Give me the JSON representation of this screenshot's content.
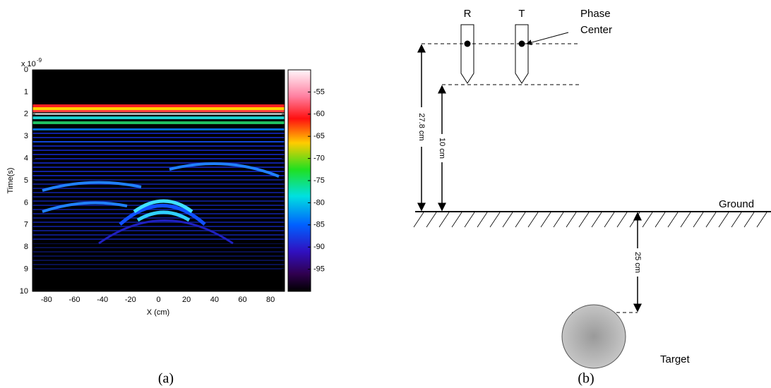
{
  "chart_data": {
    "type": "heatmap",
    "xlabel": "X (cm)",
    "ylabel": "Time(s)",
    "exponent_base": "x 10",
    "exponent_power": "-9",
    "xlim": [
      -90,
      90
    ],
    "xticks": [
      -80,
      -60,
      -40,
      -20,
      0,
      20,
      40,
      60,
      80
    ],
    "ylim": [
      0,
      10
    ],
    "yticks": [
      0,
      1,
      2,
      3,
      4,
      5,
      6,
      7,
      8,
      9,
      10
    ],
    "clim": [
      -100,
      -50
    ],
    "cticks": [
      -55,
      -60,
      -65,
      -70,
      -75,
      -80,
      -85,
      -90,
      -95
    ],
    "caption": "(a)"
  },
  "diagram": {
    "receiver": "R",
    "transmitter": "T",
    "phase_center": [
      "Phase",
      "Center"
    ],
    "antenna_height": "27.8 cm",
    "tip_height": "10 cm",
    "ground": "Ground",
    "target_depth": "25 cm",
    "target": "Target",
    "caption": "(b)"
  }
}
